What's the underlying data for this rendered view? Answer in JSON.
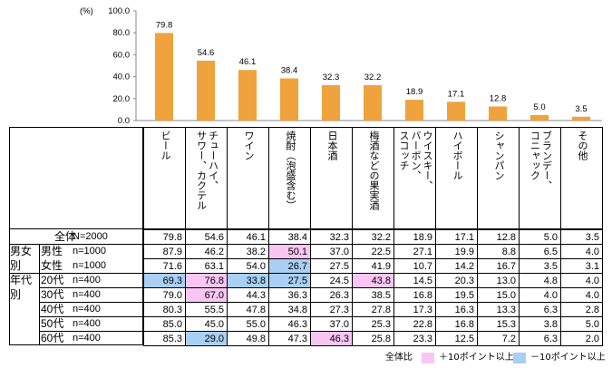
{
  "chart_data": {
    "type": "bar",
    "ylabel": "(%)",
    "ylim": [
      0,
      100
    ],
    "yticks": [
      "0.0",
      "20.0",
      "40.0",
      "60.0",
      "80.0",
      "100.0"
    ],
    "categories": [
      "ビール",
      "チューハイ、サワー、カクテル",
      "ワイン",
      "焼酎（泡盛含む）",
      "日本酒",
      "梅酒などの果実酒",
      "ウイスキー、バーボン、スコッチ",
      "ハイボール",
      "シャンパン",
      "ブランデー、コニャック",
      "その他"
    ],
    "header_lines": [
      [
        "ビール"
      ],
      [
        "チューハイ、",
        "サワー、カクテル"
      ],
      [
        "ワイン"
      ],
      [
        "焼酎（泡盛含む）"
      ],
      [
        "日本酒"
      ],
      [
        "梅酒などの果実酒"
      ],
      [
        "ウイスキー、",
        "バーボン、",
        "スコッチ"
      ],
      [
        "ハイボール"
      ],
      [
        "シャンパン"
      ],
      [
        "ブランデー、",
        "コニャック"
      ],
      [
        "その他"
      ]
    ],
    "values": [
      79.8,
      54.6,
      46.1,
      38.4,
      32.3,
      32.2,
      18.9,
      17.1,
      12.8,
      5.0,
      3.5
    ],
    "value_labels": [
      "79.8",
      "54.6",
      "46.1",
      "38.4",
      "32.3",
      "32.2",
      "18.9",
      "17.1",
      "12.8",
      "5.0",
      "3.5"
    ],
    "bar_color": "#F0A23C"
  },
  "table": {
    "rows": [
      {
        "group": "",
        "label": "全体",
        "n": "N=2000",
        "values": [
          "79.8",
          "54.6",
          "46.1",
          "38.4",
          "32.3",
          "32.2",
          "18.9",
          "17.1",
          "12.8",
          "5.0",
          "3.5"
        ],
        "marks": [
          "",
          "",
          "",
          "",
          "",
          "",
          "",
          "",
          "",
          "",
          ""
        ]
      },
      {
        "group": "男女別",
        "label": "男性",
        "n": "n=1000",
        "values": [
          "87.9",
          "46.2",
          "38.2",
          "50.1",
          "37.0",
          "22.5",
          "27.1",
          "19.9",
          "8.8",
          "6.5",
          "4.0"
        ],
        "marks": [
          "",
          "",
          "",
          "+",
          "",
          "",
          "",
          "",
          "",
          "",
          ""
        ]
      },
      {
        "group": "",
        "label": "女性",
        "n": "n=1000",
        "values": [
          "71.6",
          "63.1",
          "54.0",
          "26.7",
          "27.5",
          "41.9",
          "10.7",
          "14.2",
          "16.7",
          "3.5",
          "3.1"
        ],
        "marks": [
          "",
          "",
          "",
          "-",
          "",
          "",
          "",
          "",
          "",
          "",
          ""
        ]
      },
      {
        "group": "年代別",
        "label": "20代",
        "n": "n=400",
        "values": [
          "69.3",
          "76.8",
          "33.8",
          "27.5",
          "24.5",
          "43.8",
          "14.5",
          "20.3",
          "13.0",
          "4.8",
          "4.0"
        ],
        "marks": [
          "-",
          "+",
          "-",
          "-",
          "",
          "+",
          "",
          "",
          "",
          "",
          ""
        ]
      },
      {
        "group": "",
        "label": "30代",
        "n": "n=400",
        "values": [
          "79.0",
          "67.0",
          "44.3",
          "36.3",
          "26.3",
          "38.5",
          "16.8",
          "19.5",
          "15.0",
          "4.0",
          "4.0"
        ],
        "marks": [
          "",
          "+",
          "",
          "",
          "",
          "",
          "",
          "",
          "",
          "",
          ""
        ]
      },
      {
        "group": "",
        "label": "40代",
        "n": "n=400",
        "values": [
          "80.3",
          "55.5",
          "47.8",
          "34.8",
          "27.3",
          "27.8",
          "17.3",
          "16.3",
          "13.3",
          "6.3",
          "2.8"
        ],
        "marks": [
          "",
          "",
          "",
          "",
          "",
          "",
          "",
          "",
          "",
          "",
          ""
        ]
      },
      {
        "group": "",
        "label": "50代",
        "n": "n=400",
        "values": [
          "85.0",
          "45.0",
          "55.0",
          "46.3",
          "37.0",
          "25.3",
          "22.8",
          "16.8",
          "15.3",
          "3.8",
          "5.0"
        ],
        "marks": [
          "",
          "",
          "",
          "",
          "",
          "",
          "",
          "",
          "",
          "",
          ""
        ]
      },
      {
        "group": "",
        "label": "60代",
        "n": "n=400",
        "values": [
          "85.3",
          "29.0",
          "49.8",
          "47.3",
          "46.3",
          "25.8",
          "23.3",
          "12.5",
          "7.2",
          "6.3",
          "2.0"
        ],
        "marks": [
          "",
          "-",
          "",
          "",
          "+",
          "",
          "",
          "",
          "",
          "",
          ""
        ]
      }
    ],
    "colors": {
      "plus": "#F9C6F4",
      "minus": "#A9CFF4"
    }
  },
  "legend": {
    "prefix": "全体比",
    "plus": "＋10ポイント以上",
    "minus": "－10ポイント以上"
  }
}
